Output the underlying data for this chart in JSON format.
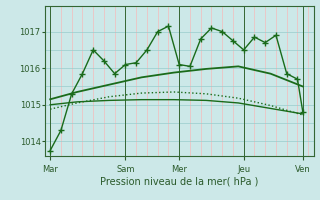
{
  "background_color": "#cce8e8",
  "plot_bg_color": "#cce8e8",
  "grid_color_major": "#99cccc",
  "grid_color_minor": "#ffb0b0",
  "line_color": "#1a6b1a",
  "xlabel": "Pression niveau de la mer( hPa )",
  "ylim": [
    1013.6,
    1017.7
  ],
  "yticks": [
    1014,
    1015,
    1016,
    1017
  ],
  "xlim": [
    0,
    25
  ],
  "day_names": [
    "Mar",
    "Sam",
    "Mer",
    "Jeu",
    "Ven"
  ],
  "day_positions": [
    0.5,
    7.5,
    12.5,
    18.5,
    24.0
  ],
  "vline_positions": [
    0.5,
    7.5,
    12.5,
    18.5,
    24.0
  ],
  "series": [
    {
      "x": [
        0.5,
        1.5,
        2.5,
        3.5,
        4.5,
        5.5,
        6.5,
        7.5,
        8.5,
        9.5,
        10.5,
        11.5,
        12.5,
        13.5,
        14.5,
        15.5,
        16.5,
        17.5,
        18.5,
        19.5,
        20.5,
        21.5,
        22.5,
        23.5,
        24.0
      ],
      "y": [
        1013.75,
        1014.3,
        1015.3,
        1015.85,
        1016.5,
        1016.2,
        1015.85,
        1016.1,
        1016.15,
        1016.5,
        1017.0,
        1017.15,
        1016.1,
        1016.05,
        1016.8,
        1017.1,
        1017.0,
        1016.75,
        1016.5,
        1016.85,
        1016.7,
        1016.9,
        1015.85,
        1015.7,
        1014.8
      ],
      "style": "-",
      "marker": "+",
      "markersize": 4,
      "lw": 1.0
    },
    {
      "x": [
        0.5,
        3,
        6,
        9,
        12,
        15,
        18,
        21,
        24
      ],
      "y": [
        1015.15,
        1015.35,
        1015.55,
        1015.75,
        1015.88,
        1015.98,
        1016.05,
        1015.85,
        1015.5
      ],
      "style": "-",
      "marker": null,
      "markersize": 0,
      "lw": 1.3
    },
    {
      "x": [
        0.5,
        3,
        6,
        9,
        12,
        15,
        18,
        21,
        24
      ],
      "y": [
        1015.0,
        1015.08,
        1015.12,
        1015.14,
        1015.14,
        1015.12,
        1015.05,
        1014.9,
        1014.75
      ],
      "style": "-",
      "marker": null,
      "markersize": 0,
      "lw": 1.0
    },
    {
      "x": [
        0.5,
        3,
        6,
        9,
        12,
        15,
        18,
        21,
        24
      ],
      "y": [
        1014.88,
        1015.05,
        1015.22,
        1015.32,
        1015.35,
        1015.3,
        1015.18,
        1014.98,
        1014.72
      ],
      "style": ":",
      "marker": null,
      "markersize": 0,
      "lw": 1.0
    }
  ]
}
